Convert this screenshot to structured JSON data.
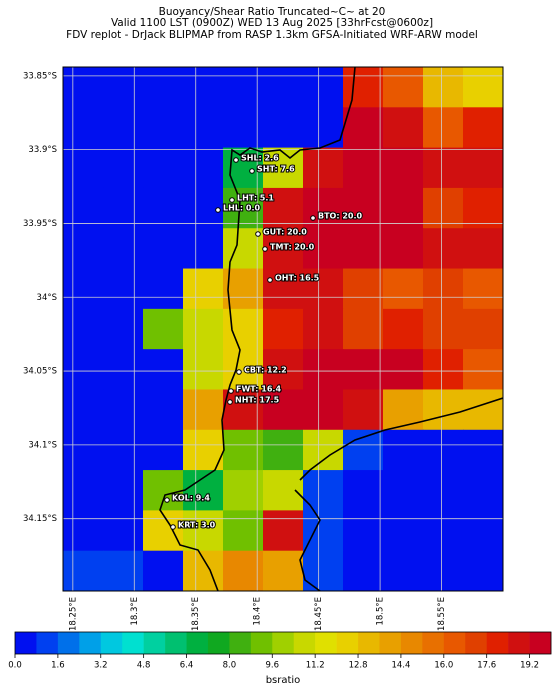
{
  "title": [
    "Buoyancy/Shear Ratio Truncated~C~    at 20",
    "Valid 1100 LST (0900Z) WED 13 Aug 2025 [33hrFcst@0600z]",
    "FDV replot - DrJack BLIPMAP from RASP 1.3km GFSA-Initiated WRF-ARW model"
  ],
  "map": {
    "xlim": [
      18.242,
      18.6
    ],
    "ylim": [
      -34.199,
      -33.844
    ],
    "xticks": [
      {
        "value": 18.25,
        "label": "18.25°E"
      },
      {
        "value": 18.3,
        "label": "18.3°E"
      },
      {
        "value": 18.35,
        "label": "18.35°E"
      },
      {
        "value": 18.4,
        "label": "18.4°E"
      },
      {
        "value": 18.45,
        "label": "18.45°E"
      },
      {
        "value": 18.5,
        "label": "18.5°E"
      },
      {
        "value": 18.55,
        "label": "18.55°E"
      }
    ],
    "yticks": [
      {
        "value": -33.85,
        "label": "33.85°S"
      },
      {
        "value": -33.9,
        "label": "33.9°S"
      },
      {
        "value": -33.95,
        "label": "33.95°S"
      },
      {
        "value": -34.0,
        "label": "34°S"
      },
      {
        "value": -34.05,
        "label": "34.05°S"
      },
      {
        "value": -34.1,
        "label": "34.1°S"
      },
      {
        "value": -34.15,
        "label": "34.15°S"
      }
    ],
    "grid": true,
    "raster": [
      [
        0.5,
        0.5,
        0.5,
        0.5,
        0.5,
        0.5,
        0.5,
        18,
        16,
        13,
        12
      ],
      [
        0.5,
        0.5,
        0.5,
        0.5,
        0.5,
        0.5,
        0.5,
        19.5,
        19,
        16,
        18
      ],
      [
        0.5,
        0.5,
        0.5,
        0.5,
        7,
        11,
        19,
        19.5,
        19.5,
        19,
        19
      ],
      [
        0.5,
        0.5,
        0.5,
        0.5,
        8,
        19,
        19.5,
        19.5,
        19.5,
        17,
        18
      ],
      [
        0.5,
        0.5,
        0.5,
        0.5,
        11,
        19,
        19.5,
        19.5,
        19.5,
        19,
        19
      ],
      [
        0.5,
        0.5,
        0.5,
        12,
        14,
        19,
        19,
        17,
        16,
        17,
        16
      ],
      [
        0.5,
        0.5,
        9,
        11,
        12,
        18,
        19,
        17,
        18,
        17,
        17
      ],
      [
        0.5,
        0.5,
        0.5,
        11,
        12,
        19,
        19.5,
        19.5,
        19.5,
        18,
        16
      ],
      [
        0.5,
        0.5,
        0.5,
        14,
        19,
        19.5,
        19.5,
        19,
        14,
        13,
        13
      ],
      [
        0.5,
        0.5,
        0.5,
        12,
        9,
        8,
        11,
        1,
        0.5,
        0.5,
        0.5
      ],
      [
        0.5,
        0.5,
        9,
        7,
        10,
        11,
        1,
        0.5,
        0.5,
        0.5,
        0.5
      ],
      [
        0.5,
        0.5,
        12,
        11,
        9,
        19,
        1,
        0.5,
        0.5,
        0.5,
        0.5
      ],
      [
        1,
        1,
        0.5,
        13,
        15,
        14,
        1,
        0.5,
        0.5,
        0.5,
        0.5
      ]
    ]
  },
  "stations": [
    "SHL: 2.6",
    "SHT: 7.6",
    "LHT: 5.1",
    "LHL: 0.0",
    "BTO: 20.0",
    "GUT: 20.0",
    "TMT: 20.0",
    "OHT: 16.5",
    "CBT: 12.2",
    "FWT: 16.4",
    "NHT: 17.5",
    "KOL: 9.4",
    "KRT: 3.0"
  ],
  "colorbar": {
    "label": "bsratio",
    "lim": [
      0,
      20
    ],
    "colors": [
      "#0010f0",
      "#0040f0",
      "#0070ea",
      "#00a0e8",
      "#00c8e0",
      "#00e0d0",
      "#00d0a0",
      "#00c070",
      "#00b040",
      "#10a820",
      "#40b010",
      "#70c000",
      "#a0d000",
      "#c8d800",
      "#e0e000",
      "#e8d000",
      "#e8b800",
      "#e8a000",
      "#e88800",
      "#e87000",
      "#e85800",
      "#e04000",
      "#e02000",
      "#d01010",
      "#c80020"
    ],
    "ticks": [
      {
        "value": 0,
        "label": "0.0"
      },
      {
        "value": 1.6,
        "label": "1.6"
      },
      {
        "value": 3.2,
        "label": "3.2"
      },
      {
        "value": 4.8,
        "label": "4.8"
      },
      {
        "value": 6.4,
        "label": "6.4"
      },
      {
        "value": 8,
        "label": "8.0"
      },
      {
        "value": 9.6,
        "label": "9.6"
      },
      {
        "value": 11.2,
        "label": "11.2"
      },
      {
        "value": 12.8,
        "label": "12.8"
      },
      {
        "value": 14.4,
        "label": "14.4"
      },
      {
        "value": 16,
        "label": "16.0"
      },
      {
        "value": 17.6,
        "label": "17.6"
      },
      {
        "value": 19.2,
        "label": "19.2"
      }
    ]
  }
}
